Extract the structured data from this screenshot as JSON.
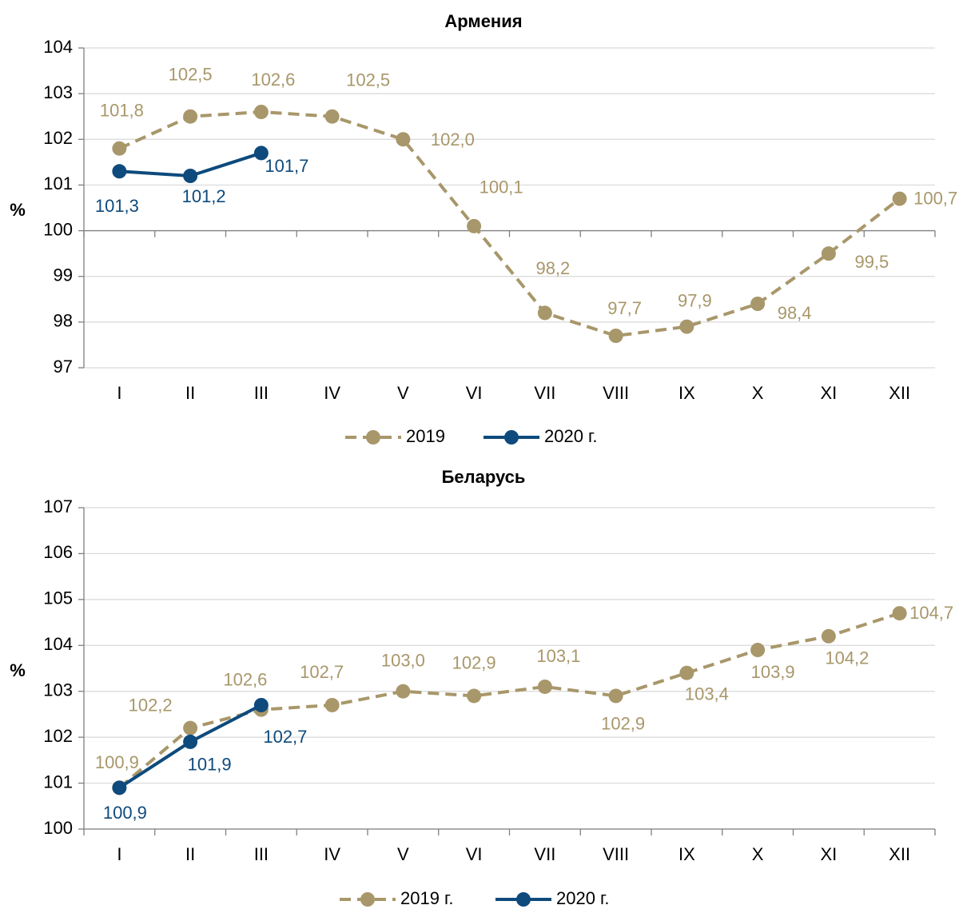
{
  "chart_data": [
    {
      "type": "line",
      "title": "Армения",
      "ylabel": "%",
      "categories": [
        "I",
        "II",
        "III",
        "IV",
        "V",
        "VI",
        "VII",
        "VIII",
        "IX",
        "X",
        "XI",
        "XII"
      ],
      "series": [
        {
          "name": "2019",
          "color": "#a8976a",
          "dashed": true,
          "values": [
            101.8,
            102.5,
            102.6,
            102.5,
            102.0,
            100.1,
            98.2,
            97.7,
            97.9,
            98.4,
            99.5,
            100.7
          ],
          "value_labels": [
            "101,8",
            "102,5",
            "102,6",
            "102,5",
            "102,0",
            "100,1",
            "98,2",
            "97,7",
            "97,9",
            "98,4",
            "99,5",
            "100,7"
          ]
        },
        {
          "name": "2020 г.",
          "color": "#0e4a7c",
          "dashed": false,
          "values": [
            101.3,
            101.2,
            101.7,
            null,
            null,
            null,
            null,
            null,
            null,
            null,
            null,
            null
          ],
          "value_labels": [
            "101,3",
            "101,2",
            "101,7",
            null,
            null,
            null,
            null,
            null,
            null,
            null,
            null,
            null
          ]
        }
      ],
      "ylim": [
        97,
        104
      ],
      "yticks": [
        97,
        98,
        99,
        100,
        101,
        102,
        103,
        104
      ],
      "grid": true,
      "x_axis_crosses": 100,
      "legend": "bottom"
    },
    {
      "type": "line",
      "title": "Беларусь",
      "ylabel": "%",
      "categories": [
        "I",
        "II",
        "III",
        "IV",
        "V",
        "VI",
        "VII",
        "VIII",
        "IX",
        "X",
        "XI",
        "XII"
      ],
      "series": [
        {
          "name": "2019 г.",
          "color": "#a8976a",
          "dashed": true,
          "values": [
            100.9,
            102.2,
            102.6,
            102.7,
            103.0,
            102.9,
            103.1,
            102.9,
            103.4,
            103.9,
            104.2,
            104.7
          ],
          "value_labels": [
            "100,9",
            "102,2",
            "102,6",
            "102,7",
            "103,0",
            "102,9",
            "103,1",
            "102,9",
            "103,4",
            "103,9",
            "104,2",
            "104,7"
          ]
        },
        {
          "name": "2020 г.",
          "color": "#0e4a7c",
          "dashed": false,
          "values": [
            100.9,
            101.9,
            102.7,
            null,
            null,
            null,
            null,
            null,
            null,
            null,
            null,
            null
          ],
          "value_labels": [
            "100,9",
            "101,9",
            "102,7",
            null,
            null,
            null,
            null,
            null,
            null,
            null,
            null,
            null
          ]
        }
      ],
      "ylim": [
        100,
        107
      ],
      "yticks": [
        100,
        101,
        102,
        103,
        104,
        105,
        106,
        107
      ],
      "grid": true,
      "x_axis_crosses": 100,
      "legend": "bottom"
    }
  ]
}
